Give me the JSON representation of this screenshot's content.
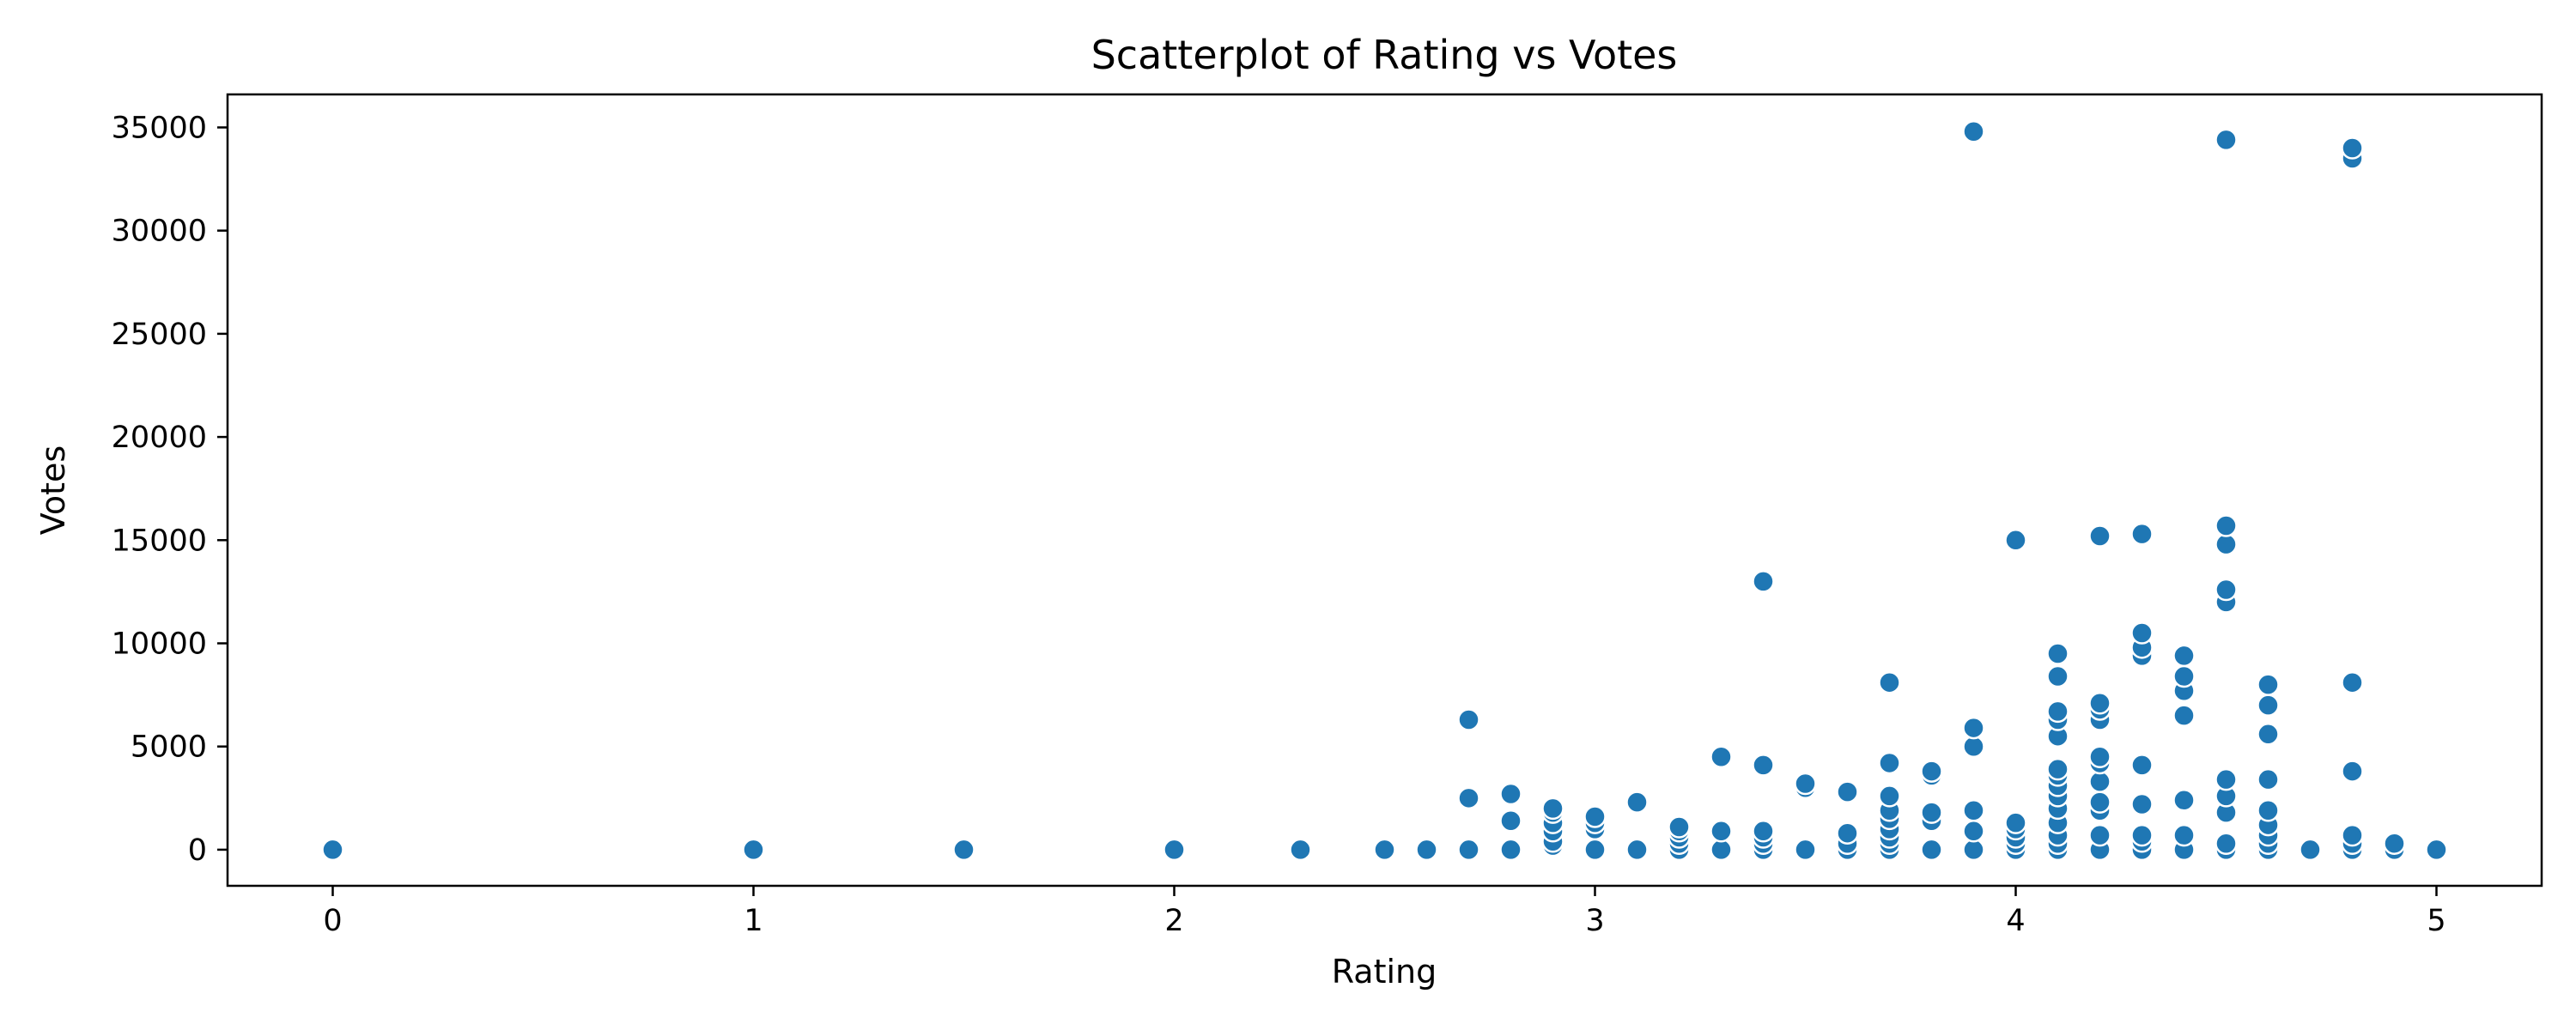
{
  "chart_data": {
    "type": "scatter",
    "title": "Scatterplot of Rating vs Votes",
    "xlabel": "Rating",
    "ylabel": "Votes",
    "xlim": [
      -0.25,
      5.25
    ],
    "ylim": [
      -1750,
      36600
    ],
    "xticks": [
      0,
      1,
      2,
      3,
      4,
      5
    ],
    "yticks": [
      0,
      5000,
      10000,
      15000,
      20000,
      25000,
      30000,
      35000
    ],
    "grid": false,
    "color": "#1f77b4",
    "series": [
      {
        "points": [
          [
            0,
            0
          ],
          [
            1,
            0
          ],
          [
            1.5,
            0
          ],
          [
            2,
            0
          ],
          [
            2.3,
            0
          ],
          [
            2.5,
            0
          ],
          [
            2.6,
            0
          ],
          [
            2.7,
            0
          ],
          [
            2.7,
            2500
          ],
          [
            2.7,
            6300
          ],
          [
            2.8,
            0
          ],
          [
            2.8,
            1400
          ],
          [
            2.8,
            2700
          ],
          [
            2.9,
            200
          ],
          [
            2.9,
            400
          ],
          [
            2.9,
            900
          ],
          [
            2.9,
            1300
          ],
          [
            2.9,
            1800
          ],
          [
            2.9,
            2000
          ],
          [
            3.0,
            0
          ],
          [
            3.0,
            1000
          ],
          [
            3.0,
            1300
          ],
          [
            3.0,
            1600
          ],
          [
            3.1,
            0
          ],
          [
            3.1,
            2300
          ],
          [
            3.2,
            0
          ],
          [
            3.2,
            300
          ],
          [
            3.2,
            600
          ],
          [
            3.2,
            900
          ],
          [
            3.2,
            1100
          ],
          [
            3.3,
            0
          ],
          [
            3.3,
            900
          ],
          [
            3.3,
            4500
          ],
          [
            3.4,
            0
          ],
          [
            3.4,
            300
          ],
          [
            3.4,
            600
          ],
          [
            3.4,
            900
          ],
          [
            3.4,
            4100
          ],
          [
            3.4,
            13000
          ],
          [
            3.5,
            0
          ],
          [
            3.5,
            3000
          ],
          [
            3.5,
            3200
          ],
          [
            3.6,
            0
          ],
          [
            3.6,
            300
          ],
          [
            3.6,
            800
          ],
          [
            3.6,
            2800
          ],
          [
            3.7,
            0
          ],
          [
            3.7,
            300
          ],
          [
            3.7,
            600
          ],
          [
            3.7,
            1000
          ],
          [
            3.7,
            1500
          ],
          [
            3.7,
            1900
          ],
          [
            3.7,
            2600
          ],
          [
            3.7,
            4200
          ],
          [
            3.7,
            8100
          ],
          [
            3.8,
            0
          ],
          [
            3.8,
            1400
          ],
          [
            3.8,
            1800
          ],
          [
            3.8,
            3600
          ],
          [
            3.8,
            3800
          ],
          [
            3.9,
            0
          ],
          [
            3.9,
            900
          ],
          [
            3.9,
            1900
          ],
          [
            3.9,
            5000
          ],
          [
            3.9,
            5900
          ],
          [
            3.9,
            34800
          ],
          [
            4.0,
            0
          ],
          [
            4.0,
            300
          ],
          [
            4.0,
            600
          ],
          [
            4.0,
            1000
          ],
          [
            4.0,
            1300
          ],
          [
            4.0,
            15000
          ],
          [
            4.1,
            0
          ],
          [
            4.1,
            300
          ],
          [
            4.1,
            700
          ],
          [
            4.1,
            1300
          ],
          [
            4.1,
            2000
          ],
          [
            4.1,
            2600
          ],
          [
            4.1,
            3100
          ],
          [
            4.1,
            3600
          ],
          [
            4.1,
            3900
          ],
          [
            4.1,
            5500
          ],
          [
            4.1,
            6300
          ],
          [
            4.1,
            6700
          ],
          [
            4.1,
            8400
          ],
          [
            4.1,
            9500
          ],
          [
            4.2,
            0
          ],
          [
            4.2,
            700
          ],
          [
            4.2,
            1900
          ],
          [
            4.2,
            2300
          ],
          [
            4.2,
            3300
          ],
          [
            4.2,
            4200
          ],
          [
            4.2,
            4500
          ],
          [
            4.2,
            6300
          ],
          [
            4.2,
            6800
          ],
          [
            4.2,
            7100
          ],
          [
            4.2,
            15200
          ],
          [
            4.3,
            0
          ],
          [
            4.3,
            400
          ],
          [
            4.3,
            700
          ],
          [
            4.3,
            2200
          ],
          [
            4.3,
            4100
          ],
          [
            4.3,
            9400
          ],
          [
            4.3,
            9800
          ],
          [
            4.3,
            10500
          ],
          [
            4.3,
            15300
          ],
          [
            4.4,
            0
          ],
          [
            4.4,
            700
          ],
          [
            4.4,
            2400
          ],
          [
            4.4,
            6500
          ],
          [
            4.4,
            7700
          ],
          [
            4.4,
            8400
          ],
          [
            4.4,
            9400
          ],
          [
            4.5,
            0
          ],
          [
            4.5,
            300
          ],
          [
            4.5,
            1800
          ],
          [
            4.5,
            2600
          ],
          [
            4.5,
            3400
          ],
          [
            4.5,
            12000
          ],
          [
            4.5,
            12600
          ],
          [
            4.5,
            14800
          ],
          [
            4.5,
            15700
          ],
          [
            4.5,
            34400
          ],
          [
            4.6,
            0
          ],
          [
            4.6,
            300
          ],
          [
            4.6,
            700
          ],
          [
            4.6,
            1200
          ],
          [
            4.6,
            1900
          ],
          [
            4.6,
            3400
          ],
          [
            4.6,
            5600
          ],
          [
            4.6,
            7000
          ],
          [
            4.6,
            8000
          ],
          [
            4.7,
            0
          ],
          [
            4.8,
            0
          ],
          [
            4.8,
            300
          ],
          [
            4.8,
            700
          ],
          [
            4.8,
            3800
          ],
          [
            4.8,
            8100
          ],
          [
            4.8,
            33500
          ],
          [
            4.8,
            34000
          ],
          [
            4.9,
            0
          ],
          [
            4.9,
            300
          ],
          [
            5.0,
            0
          ]
        ]
      }
    ]
  }
}
